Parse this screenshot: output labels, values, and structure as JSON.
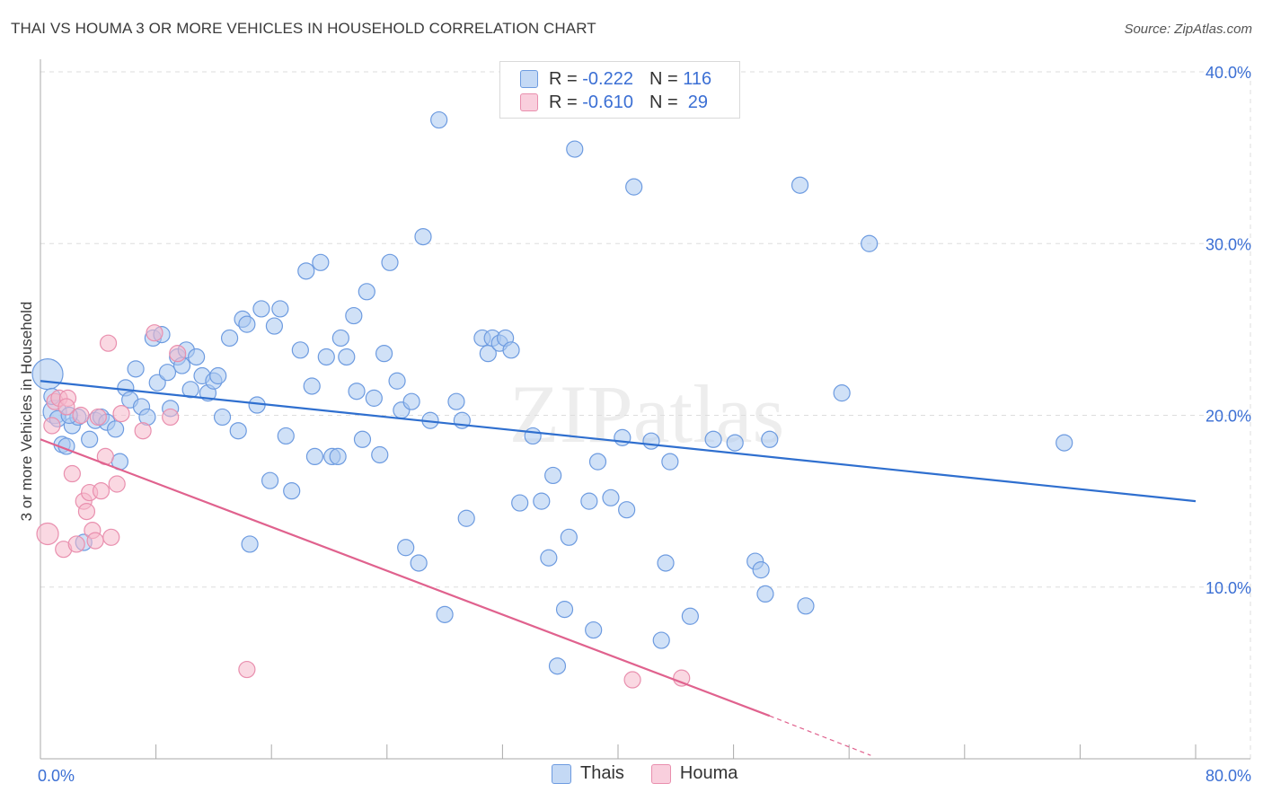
{
  "header": {
    "title": "THAI VS HOUMA 3 OR MORE VEHICLES IN HOUSEHOLD CORRELATION CHART",
    "source": "Source: ZipAtlas.com"
  },
  "watermark": "ZIPatlas",
  "legend": {
    "series": [
      {
        "r_label": "R = ",
        "r_value": "-0.222",
        "n_label": "N = ",
        "n_value": "116"
      },
      {
        "r_label": "R = ",
        "r_value": "-0.610",
        "n_label": "N = ",
        "n_value": " 29"
      }
    ],
    "bottom": [
      "Thais",
      "Houma"
    ]
  },
  "colors": {
    "thais_fill": "#a9c8f0",
    "thais_stroke": "#6d9be0",
    "thais_line": "#2f6fcf",
    "houma_fill": "#f6b8cb",
    "houma_stroke": "#e98fae",
    "houma_line": "#e0628e",
    "grid": "#dddddd",
    "tick_text": "#3b6fd4"
  },
  "chart_data": {
    "type": "scatter",
    "title": "THAI VS HOUMA 3 OR MORE VEHICLES IN HOUSEHOLD CORRELATION CHART",
    "xlabel": "",
    "ylabel": "3 or more Vehicles in Household",
    "xlim": [
      0,
      80
    ],
    "ylim": [
      0,
      40
    ],
    "x_tick_labels": [
      "0.0%",
      "80.0%"
    ],
    "y_ticks": [
      10,
      20,
      30,
      40
    ],
    "y_tick_labels": [
      "10.0%",
      "20.0%",
      "30.0%",
      "40.0%"
    ],
    "grid": true,
    "series": [
      {
        "name": "Thais",
        "stats": {
          "R": -0.222,
          "N": 116
        },
        "trend": {
          "x": [
            0,
            80
          ],
          "y": [
            22.0,
            15.0
          ]
        },
        "points": [
          [
            0.5,
            22.4
          ],
          [
            1.0,
            20.2
          ],
          [
            1.2,
            19.8
          ],
          [
            1.5,
            18.3
          ],
          [
            1.8,
            18.2
          ],
          [
            2.2,
            19.4
          ],
          [
            2.6,
            19.9
          ],
          [
            3.0,
            12.6
          ],
          [
            3.4,
            18.6
          ],
          [
            3.8,
            19.7
          ],
          [
            4.2,
            19.9
          ],
          [
            4.6,
            19.6
          ],
          [
            5.2,
            19.2
          ],
          [
            5.5,
            17.3
          ],
          [
            5.9,
            21.6
          ],
          [
            6.2,
            20.9
          ],
          [
            6.6,
            22.7
          ],
          [
            7.0,
            20.5
          ],
          [
            7.4,
            19.9
          ],
          [
            7.8,
            24.5
          ],
          [
            8.1,
            21.9
          ],
          [
            8.4,
            24.7
          ],
          [
            8.8,
            22.5
          ],
          [
            9.0,
            20.4
          ],
          [
            9.5,
            23.4
          ],
          [
            9.8,
            22.9
          ],
          [
            10.1,
            23.8
          ],
          [
            10.4,
            21.5
          ],
          [
            10.8,
            23.4
          ],
          [
            11.2,
            22.3
          ],
          [
            11.6,
            21.3
          ],
          [
            12.0,
            22.0
          ],
          [
            12.3,
            22.3
          ],
          [
            12.6,
            19.9
          ],
          [
            13.1,
            24.5
          ],
          [
            13.7,
            19.1
          ],
          [
            14.0,
            25.6
          ],
          [
            14.3,
            25.3
          ],
          [
            14.5,
            12.5
          ],
          [
            15.0,
            20.6
          ],
          [
            15.3,
            26.2
          ],
          [
            15.9,
            16.2
          ],
          [
            16.2,
            25.2
          ],
          [
            16.6,
            26.2
          ],
          [
            17.0,
            18.8
          ],
          [
            17.4,
            15.6
          ],
          [
            18.0,
            23.8
          ],
          [
            18.4,
            28.4
          ],
          [
            18.8,
            21.7
          ],
          [
            19.0,
            17.6
          ],
          [
            19.4,
            28.9
          ],
          [
            19.8,
            23.4
          ],
          [
            20.2,
            17.6
          ],
          [
            20.6,
            17.6
          ],
          [
            20.8,
            24.5
          ],
          [
            21.2,
            23.4
          ],
          [
            21.7,
            25.8
          ],
          [
            21.9,
            21.4
          ],
          [
            22.3,
            18.6
          ],
          [
            22.6,
            27.2
          ],
          [
            23.1,
            21.0
          ],
          [
            23.5,
            17.7
          ],
          [
            23.8,
            23.6
          ],
          [
            24.2,
            28.9
          ],
          [
            24.7,
            22.0
          ],
          [
            25.0,
            20.3
          ],
          [
            25.3,
            12.3
          ],
          [
            25.7,
            20.8
          ],
          [
            26.2,
            11.4
          ],
          [
            26.5,
            30.4
          ],
          [
            27.0,
            19.7
          ],
          [
            27.6,
            37.2
          ],
          [
            28.0,
            8.4
          ],
          [
            28.8,
            20.8
          ],
          [
            29.2,
            19.7
          ],
          [
            29.5,
            14.0
          ],
          [
            30.6,
            24.5
          ],
          [
            31.0,
            23.6
          ],
          [
            31.3,
            24.5
          ],
          [
            31.8,
            24.2
          ],
          [
            32.2,
            24.5
          ],
          [
            32.6,
            23.8
          ],
          [
            33.2,
            14.9
          ],
          [
            34.1,
            18.8
          ],
          [
            34.7,
            15.0
          ],
          [
            35.2,
            11.7
          ],
          [
            35.5,
            16.5
          ],
          [
            35.8,
            5.4
          ],
          [
            36.3,
            8.7
          ],
          [
            36.6,
            12.9
          ],
          [
            37.0,
            35.5
          ],
          [
            38.0,
            15.0
          ],
          [
            38.3,
            7.5
          ],
          [
            38.6,
            17.3
          ],
          [
            39.5,
            15.2
          ],
          [
            40.3,
            18.7
          ],
          [
            40.6,
            14.5
          ],
          [
            41.1,
            33.3
          ],
          [
            42.3,
            18.5
          ],
          [
            43.3,
            11.4
          ],
          [
            43.6,
            17.3
          ],
          [
            43.0,
            6.9
          ],
          [
            45.0,
            8.3
          ],
          [
            46.6,
            18.6
          ],
          [
            48.1,
            18.4
          ],
          [
            49.5,
            11.5
          ],
          [
            49.9,
            11.0
          ],
          [
            50.2,
            9.6
          ],
          [
            50.5,
            18.6
          ],
          [
            52.6,
            33.4
          ],
          [
            53.0,
            8.9
          ],
          [
            55.5,
            21.3
          ],
          [
            57.4,
            30.0
          ],
          [
            70.9,
            18.4
          ],
          [
            0.8,
            21.1
          ],
          [
            2.0,
            20.0
          ]
        ]
      },
      {
        "name": "Houma",
        "stats": {
          "R": -0.61,
          "N": 29
        },
        "trend": {
          "x": [
            0,
            50.5
          ],
          "y": [
            18.6,
            2.5
          ],
          "dashed_to": {
            "x": 57.5,
            "y": 0.2
          }
        },
        "points": [
          [
            0.5,
            13.1
          ],
          [
            0.8,
            19.4
          ],
          [
            1.0,
            20.8
          ],
          [
            1.3,
            21.0
          ],
          [
            1.6,
            12.2
          ],
          [
            1.9,
            21.0
          ],
          [
            2.2,
            16.6
          ],
          [
            2.5,
            12.5
          ],
          [
            2.8,
            20.0
          ],
          [
            3.0,
            15.0
          ],
          [
            3.2,
            14.4
          ],
          [
            3.4,
            15.5
          ],
          [
            3.6,
            13.3
          ],
          [
            3.8,
            12.7
          ],
          [
            4.0,
            19.9
          ],
          [
            4.2,
            15.6
          ],
          [
            4.5,
            17.6
          ],
          [
            4.7,
            24.2
          ],
          [
            4.9,
            12.9
          ],
          [
            5.3,
            16.0
          ],
          [
            5.6,
            20.1
          ],
          [
            7.1,
            19.1
          ],
          [
            7.9,
            24.8
          ],
          [
            9.0,
            19.9
          ],
          [
            9.5,
            23.6
          ],
          [
            14.3,
            5.2
          ],
          [
            41.0,
            4.6
          ],
          [
            44.4,
            4.7
          ],
          [
            1.8,
            20.5
          ]
        ]
      }
    ]
  }
}
